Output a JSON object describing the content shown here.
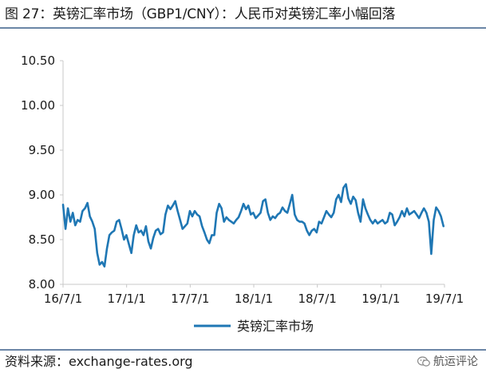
{
  "figure_title": "图 27：英镑汇率市场（GBP1/CNY）：人民币对英镑汇率小幅回落",
  "source_text": "资料来源：exchange-rates.org",
  "watermark_text": "航运评论",
  "watermark_icon": "wechat-bubble-icon",
  "colors": {
    "series": "#1f77b4",
    "rule": "#6b86a6",
    "axis": "#c8c8c8"
  },
  "chart_data": {
    "type": "line",
    "title": "",
    "xlabel": "",
    "ylabel": "",
    "ylim": [
      8.0,
      10.5
    ],
    "yticks": [
      "10.50",
      "10.00",
      "9.50",
      "9.00",
      "8.50",
      "8.00"
    ],
    "xticks": [
      "16/7/1",
      "17/1/1",
      "17/7/1",
      "18/1/1",
      "18/7/1",
      "19/1/1",
      "19/7/1"
    ],
    "xrange": [
      "2016-07-01",
      "2019-07-01"
    ],
    "grid": false,
    "legend": "bottom-center",
    "series": [
      {
        "name": "英镑汇率市场",
        "points": [
          [
            "2016-07-01",
            8.89
          ],
          [
            "2016-07-08",
            8.62
          ],
          [
            "2016-07-15",
            8.85
          ],
          [
            "2016-07-22",
            8.7
          ],
          [
            "2016-07-29",
            8.8
          ],
          [
            "2016-08-05",
            8.66
          ],
          [
            "2016-08-12",
            8.72
          ],
          [
            "2016-08-19",
            8.7
          ],
          [
            "2016-08-26",
            8.82
          ],
          [
            "2016-09-02",
            8.85
          ],
          [
            "2016-09-09",
            8.91
          ],
          [
            "2016-09-16",
            8.76
          ],
          [
            "2016-09-23",
            8.7
          ],
          [
            "2016-09-30",
            8.62
          ],
          [
            "2016-10-07",
            8.35
          ],
          [
            "2016-10-14",
            8.22
          ],
          [
            "2016-10-21",
            8.25
          ],
          [
            "2016-10-28",
            8.2
          ],
          [
            "2016-11-04",
            8.4
          ],
          [
            "2016-11-11",
            8.55
          ],
          [
            "2016-11-18",
            8.58
          ],
          [
            "2016-11-25",
            8.6
          ],
          [
            "2016-12-02",
            8.7
          ],
          [
            "2016-12-09",
            8.72
          ],
          [
            "2016-12-16",
            8.62
          ],
          [
            "2016-12-23",
            8.5
          ],
          [
            "2016-12-30",
            8.55
          ],
          [
            "2017-01-06",
            8.45
          ],
          [
            "2017-01-13",
            8.35
          ],
          [
            "2017-01-20",
            8.55
          ],
          [
            "2017-01-27",
            8.66
          ],
          [
            "2017-02-03",
            8.58
          ],
          [
            "2017-02-10",
            8.6
          ],
          [
            "2017-02-17",
            8.55
          ],
          [
            "2017-02-24",
            8.65
          ],
          [
            "2017-03-03",
            8.48
          ],
          [
            "2017-03-10",
            8.4
          ],
          [
            "2017-03-17",
            8.52
          ],
          [
            "2017-03-24",
            8.6
          ],
          [
            "2017-03-31",
            8.62
          ],
          [
            "2017-04-07",
            8.56
          ],
          [
            "2017-04-14",
            8.58
          ],
          [
            "2017-04-21",
            8.78
          ],
          [
            "2017-04-28",
            8.88
          ],
          [
            "2017-05-05",
            8.84
          ],
          [
            "2017-05-12",
            8.88
          ],
          [
            "2017-05-19",
            8.93
          ],
          [
            "2017-05-26",
            8.82
          ],
          [
            "2017-06-02",
            8.72
          ],
          [
            "2017-06-09",
            8.62
          ],
          [
            "2017-06-16",
            8.65
          ],
          [
            "2017-06-23",
            8.68
          ],
          [
            "2017-06-30",
            8.82
          ],
          [
            "2017-07-07",
            8.76
          ],
          [
            "2017-07-14",
            8.82
          ],
          [
            "2017-07-21",
            8.78
          ],
          [
            "2017-07-28",
            8.76
          ],
          [
            "2017-08-04",
            8.65
          ],
          [
            "2017-08-11",
            8.58
          ],
          [
            "2017-08-18",
            8.5
          ],
          [
            "2017-08-25",
            8.46
          ],
          [
            "2017-09-01",
            8.55
          ],
          [
            "2017-09-08",
            8.55
          ],
          [
            "2017-09-15",
            8.8
          ],
          [
            "2017-09-22",
            8.9
          ],
          [
            "2017-09-29",
            8.85
          ],
          [
            "2017-10-06",
            8.7
          ],
          [
            "2017-10-13",
            8.75
          ],
          [
            "2017-10-20",
            8.72
          ],
          [
            "2017-10-27",
            8.7
          ],
          [
            "2017-11-03",
            8.68
          ],
          [
            "2017-11-10",
            8.72
          ],
          [
            "2017-11-17",
            8.75
          ],
          [
            "2017-11-24",
            8.82
          ],
          [
            "2017-12-01",
            8.9
          ],
          [
            "2017-12-08",
            8.84
          ],
          [
            "2017-12-15",
            8.88
          ],
          [
            "2017-12-22",
            8.78
          ],
          [
            "2017-12-29",
            8.8
          ],
          [
            "2018-01-05",
            8.74
          ],
          [
            "2018-01-12",
            8.77
          ],
          [
            "2018-01-19",
            8.8
          ],
          [
            "2018-01-26",
            8.93
          ],
          [
            "2018-02-02",
            8.95
          ],
          [
            "2018-02-09",
            8.8
          ],
          [
            "2018-02-16",
            8.72
          ],
          [
            "2018-02-23",
            8.76
          ],
          [
            "2018-03-02",
            8.74
          ],
          [
            "2018-03-09",
            8.78
          ],
          [
            "2018-03-16",
            8.8
          ],
          [
            "2018-03-23",
            8.86
          ],
          [
            "2018-03-30",
            8.82
          ],
          [
            "2018-04-06",
            8.8
          ],
          [
            "2018-04-13",
            8.9
          ],
          [
            "2018-04-20",
            9.0
          ],
          [
            "2018-04-27",
            8.78
          ],
          [
            "2018-05-04",
            8.72
          ],
          [
            "2018-05-11",
            8.7
          ],
          [
            "2018-05-18",
            8.7
          ],
          [
            "2018-05-25",
            8.68
          ],
          [
            "2018-06-01",
            8.6
          ],
          [
            "2018-06-08",
            8.55
          ],
          [
            "2018-06-15",
            8.6
          ],
          [
            "2018-06-22",
            8.62
          ],
          [
            "2018-06-29",
            8.58
          ],
          [
            "2018-07-06",
            8.7
          ],
          [
            "2018-07-13",
            8.68
          ],
          [
            "2018-07-20",
            8.75
          ],
          [
            "2018-07-27",
            8.82
          ],
          [
            "2018-08-03",
            8.78
          ],
          [
            "2018-08-10",
            8.75
          ],
          [
            "2018-08-17",
            8.8
          ],
          [
            "2018-08-24",
            8.95
          ],
          [
            "2018-08-31",
            9.0
          ],
          [
            "2018-09-07",
            8.92
          ],
          [
            "2018-09-14",
            9.08
          ],
          [
            "2018-09-21",
            9.12
          ],
          [
            "2018-09-28",
            8.96
          ],
          [
            "2018-10-05",
            8.9
          ],
          [
            "2018-10-12",
            8.98
          ],
          [
            "2018-10-19",
            8.94
          ],
          [
            "2018-10-26",
            8.8
          ],
          [
            "2018-11-02",
            8.7
          ],
          [
            "2018-11-09",
            8.95
          ],
          [
            "2018-11-16",
            8.85
          ],
          [
            "2018-11-23",
            8.78
          ],
          [
            "2018-11-30",
            8.72
          ],
          [
            "2018-12-07",
            8.68
          ],
          [
            "2018-12-14",
            8.72
          ],
          [
            "2018-12-21",
            8.68
          ],
          [
            "2018-12-28",
            8.7
          ],
          [
            "2019-01-04",
            8.72
          ],
          [
            "2019-01-11",
            8.68
          ],
          [
            "2019-01-18",
            8.7
          ],
          [
            "2019-01-25",
            8.8
          ],
          [
            "2019-02-01",
            8.78
          ],
          [
            "2019-02-08",
            8.66
          ],
          [
            "2019-02-15",
            8.7
          ],
          [
            "2019-02-22",
            8.75
          ],
          [
            "2019-03-01",
            8.82
          ],
          [
            "2019-03-08",
            8.76
          ],
          [
            "2019-03-15",
            8.85
          ],
          [
            "2019-03-22",
            8.78
          ],
          [
            "2019-03-29",
            8.8
          ],
          [
            "2019-04-05",
            8.82
          ],
          [
            "2019-04-12",
            8.78
          ],
          [
            "2019-04-19",
            8.74
          ],
          [
            "2019-04-26",
            8.8
          ],
          [
            "2019-05-03",
            8.85
          ],
          [
            "2019-05-10",
            8.8
          ],
          [
            "2019-05-17",
            8.7
          ],
          [
            "2019-05-24",
            8.34
          ],
          [
            "2019-05-31",
            8.72
          ],
          [
            "2019-06-07",
            8.86
          ],
          [
            "2019-06-14",
            8.82
          ],
          [
            "2019-06-21",
            8.76
          ],
          [
            "2019-06-28",
            8.65
          ]
        ]
      }
    ]
  }
}
